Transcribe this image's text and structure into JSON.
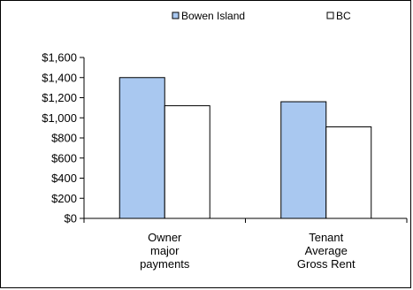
{
  "chart_data": {
    "type": "bar",
    "categories": [
      [
        "Owner",
        "major",
        "payments"
      ],
      [
        "Tenant",
        "Average",
        "Gross Rent"
      ]
    ],
    "series": [
      {
        "name": "Bowen Island",
        "values": [
          1400,
          1160
        ],
        "color": "#a9c8f0"
      },
      {
        "name": "BC",
        "values": [
          1120,
          910
        ],
        "color": "#ffffff"
      }
    ],
    "ylim": [
      0,
      1600
    ],
    "yticks": [
      0,
      200,
      400,
      600,
      800,
      1000,
      1200,
      1400,
      1600
    ],
    "ytick_labels": [
      "$0",
      "$200",
      "$400",
      "$600",
      "$800",
      "$1,000",
      "$1,200",
      "$1,400",
      "$1,600"
    ],
    "legend_position": "top-center",
    "grid": false
  }
}
